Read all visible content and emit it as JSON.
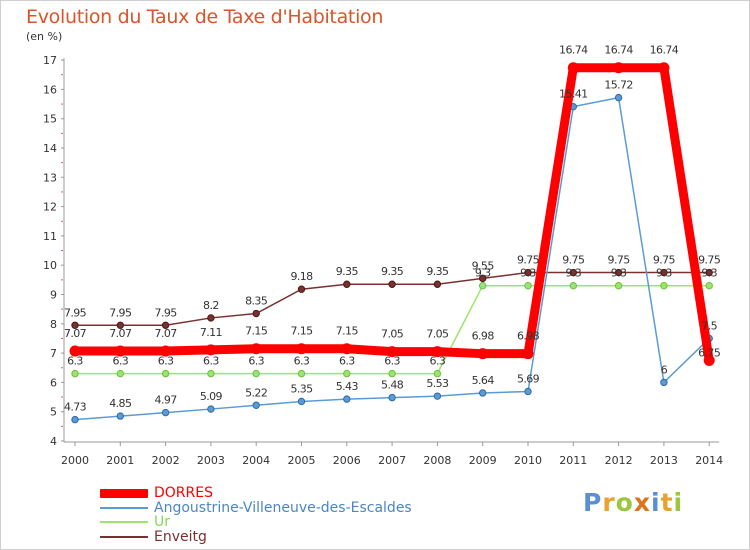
{
  "title": "Evolution du Taux de Taxe d'Habitation",
  "subtitle": "(en %)",
  "logo": "Proxiti",
  "chart_data": {
    "type": "line",
    "title": "Evolution du Taux de Taxe d'Habitation",
    "ylabel": "(en %)",
    "xlabel": "",
    "ylim": [
      4,
      17
    ],
    "yticks": [
      4,
      5,
      6,
      7,
      8,
      9,
      10,
      11,
      12,
      13,
      14,
      15,
      16,
      17
    ],
    "grid": false,
    "legend_position": "bottom-left",
    "x": [
      "2000",
      "2001",
      "2002",
      "2003",
      "2004",
      "2005",
      "2006",
      "2007",
      "2008",
      "2009",
      "2010",
      "2011",
      "2012",
      "2013",
      "2014"
    ],
    "series": [
      {
        "name": "DORRES",
        "color": "#ff0000",
        "values": [
          7.07,
          7.07,
          7.07,
          7.11,
          7.15,
          7.15,
          7.15,
          7.05,
          7.05,
          6.98,
          6.98,
          16.74,
          16.74,
          16.74,
          6.75
        ],
        "labels": [
          "7.07",
          "7.07",
          "7.07",
          "7.11",
          "7.15",
          "7.15",
          "7.15",
          "7.05",
          "7.05",
          "6.98",
          "6.98",
          "16.74",
          "16.74",
          "16.74",
          ""
        ]
      },
      {
        "name": "Angoustrine-Villeneuve-des-Escaldes",
        "color": "#5b9bd5",
        "values": [
          4.73,
          4.85,
          4.97,
          5.09,
          5.22,
          5.35,
          5.43,
          5.48,
          5.53,
          5.64,
          5.69,
          15.41,
          15.72,
          6,
          7.5
        ],
        "labels": [
          "4.73",
          "4.85",
          "4.97",
          "5.09",
          "5.22",
          "5.35",
          "5.43",
          "5.48",
          "5.53",
          "5.64",
          "5.69",
          "15.41",
          "15.72",
          "6",
          "7.5"
        ]
      },
      {
        "name": "Ur",
        "color": "#99e66b",
        "values": [
          6.3,
          6.3,
          6.3,
          6.3,
          6.3,
          6.3,
          6.3,
          6.3,
          6.3,
          9.3,
          9.3,
          9.3,
          9.3,
          9.3,
          9.3
        ],
        "labels": [
          "6.3",
          "6.3",
          "6.3",
          "6.3",
          "6.3",
          "6.3",
          "6.3",
          "6.3",
          "6.3",
          "9.3",
          "9.3",
          "9.3",
          "9.3",
          "9.3",
          "9.3"
        ]
      },
      {
        "name": "Enveitg",
        "color": "#7b3030",
        "values": [
          7.95,
          7.95,
          7.95,
          8.2,
          8.35,
          9.18,
          9.35,
          9.35,
          9.35,
          9.55,
          9.75,
          9.75,
          9.75,
          9.75,
          9.75
        ],
        "labels": [
          "7.95",
          "7.95",
          "7.95",
          "8.2",
          "8.35",
          "9.18",
          "9.35",
          "9.35",
          "9.35",
          "9.55",
          "9.75",
          "9.75",
          "9.75",
          "9.75",
          "9.75"
        ]
      }
    ],
    "extra_labels": [
      "6.75"
    ]
  }
}
